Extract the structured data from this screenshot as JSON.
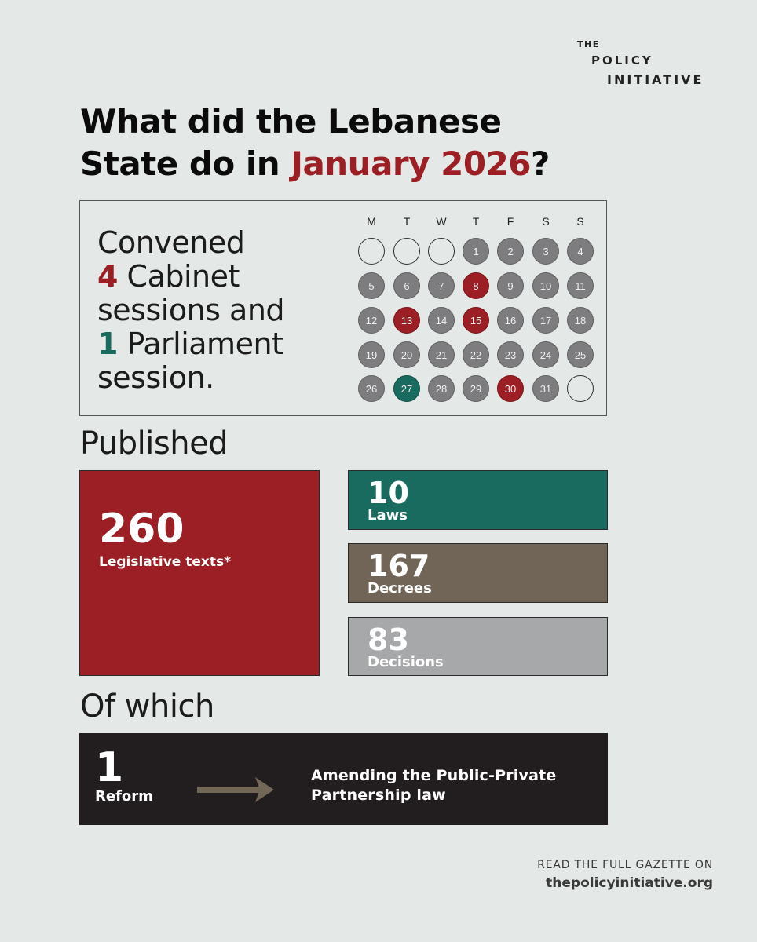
{
  "logo": {
    "line1": "THE",
    "line2": "POLICY",
    "line3": "INITIATIVE"
  },
  "headline": {
    "line1": "What did the Lebanese",
    "line2_prefix": "State do in ",
    "line2_accent": "January 2026",
    "line2_suffix": "?"
  },
  "convened": {
    "line1": "Convened",
    "cabinet_count": "4",
    "cabinet_text": " Cabinet",
    "line3": "sessions and",
    "parliament_count": "1",
    "parliament_text": " Parliament",
    "line5": "session."
  },
  "calendar": {
    "weekdays": [
      "M",
      "T",
      "W",
      "T",
      "F",
      "S",
      "S"
    ],
    "leading_blank_days": 3,
    "days_in_month": 31,
    "cabinet_session_days": [
      8,
      13,
      15,
      30
    ],
    "parliament_session_days": [
      27
    ],
    "colors": {
      "default": "#7d7d7f",
      "cabinet": "#9b1f24",
      "parliament": "#1a6b5f"
    }
  },
  "published": {
    "heading": "Published",
    "total": {
      "value": "260",
      "label": "Legislative texts*"
    },
    "laws": {
      "value": "10",
      "label": "Laws"
    },
    "decrees": {
      "value": "167",
      "label": "Decrees"
    },
    "decisions": {
      "value": "83",
      "label": "Decisions"
    }
  },
  "of_which": {
    "heading": "Of which",
    "reform_value": "1",
    "reform_label": "Reform",
    "description_line1": "Amending the Public-Private",
    "description_line2": "Partnership law"
  },
  "footer": {
    "line1": "READ THE FULL GAZETTE ON",
    "url": "thepolicyinitiative.org"
  }
}
